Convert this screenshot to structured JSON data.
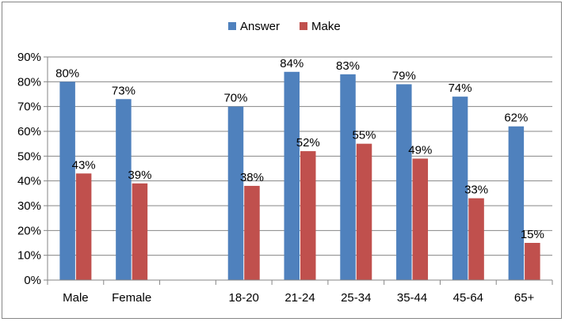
{
  "chart_data": {
    "type": "bar",
    "categories": [
      "Male",
      "Female",
      "",
      "18-20",
      "21-24",
      "25-34",
      "35-44",
      "45-64",
      "65+"
    ],
    "series": [
      {
        "name": "Answer",
        "color": "#4F81BD",
        "values": [
          80,
          73,
          null,
          70,
          84,
          83,
          79,
          74,
          62
        ],
        "labels": [
          "80%",
          "73%",
          "",
          "70%",
          "84%",
          "83%",
          "79%",
          "74%",
          "62%"
        ]
      },
      {
        "name": "Make",
        "color": "#C0504D",
        "values": [
          43,
          39,
          null,
          38,
          52,
          55,
          49,
          33,
          15
        ],
        "labels": [
          "43%",
          "39%",
          "",
          "38%",
          "52%",
          "55%",
          "49%",
          "33%",
          "15%"
        ]
      }
    ],
    "y_ticks": [
      "0%",
      "10%",
      "20%",
      "30%",
      "40%",
      "50%",
      "60%",
      "70%",
      "80%",
      "90%"
    ],
    "ylim": [
      0,
      90
    ],
    "legend": "top-center",
    "grid": "horizontal"
  }
}
